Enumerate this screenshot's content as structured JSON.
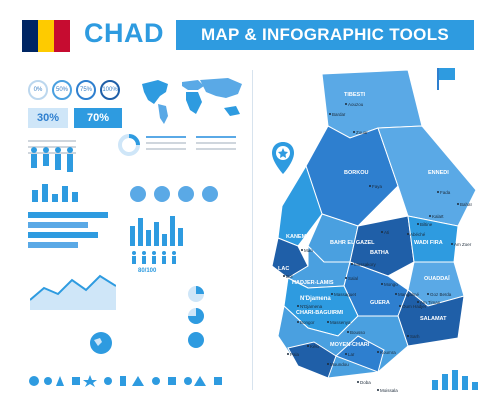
{
  "header": {
    "title": "CHAD",
    "tools_label": "MAP & INFOGRAPHIC TOOLS"
  },
  "flag_colors": [
    "#002664",
    "#FECB00",
    "#C60C30"
  ],
  "colors": {
    "accent": "#2e9be0",
    "light": "#cfe6f8",
    "dark": "#1f5fa8"
  },
  "infographics": {
    "percent_circles": [
      "0%",
      "50%",
      "75%",
      "100%"
    ],
    "percent_boxes": [
      "30%",
      "70%"
    ],
    "people_label": "",
    "stat": "80/100"
  },
  "map": {
    "regions": [
      {
        "name": "TIBESTI"
      },
      {
        "name": "BORKOU"
      },
      {
        "name": "ENNEDI"
      },
      {
        "name": "KANEM"
      },
      {
        "name": "BAHR EL GAZEL"
      },
      {
        "name": "BATHA"
      },
      {
        "name": "WADI FIRA"
      },
      {
        "name": "LAC"
      },
      {
        "name": "HADJER-LAMIS"
      },
      {
        "name": "OUADDAÏ"
      },
      {
        "name": "GUERA"
      },
      {
        "name": "SALAMAT"
      },
      {
        "name": "CHARI-BAGUIRMI"
      },
      {
        "name": "MOYEN-CHARI"
      }
    ],
    "cities": [
      "Aouzou",
      "Bardaï",
      "Zouar",
      "Faya",
      "Fada",
      "Kalaït",
      "Bahaï",
      "Biltine",
      "Abéché",
      "Am Zoer",
      "Ati",
      "Mao",
      "Mongo",
      "Massakory",
      "Salal",
      "Bol",
      "Massaguet",
      "N'Djamena",
      "Massenya",
      "Bousso",
      "Am Timan",
      "Goz Beïda",
      "Mangalmé",
      "Oum Hadjer",
      "Sarh",
      "Moundou",
      "Koumra",
      "Doba",
      "Laï",
      "Kélo",
      "Bongor",
      "Pala",
      "Moissala"
    ],
    "capital": "N'Djamena"
  }
}
